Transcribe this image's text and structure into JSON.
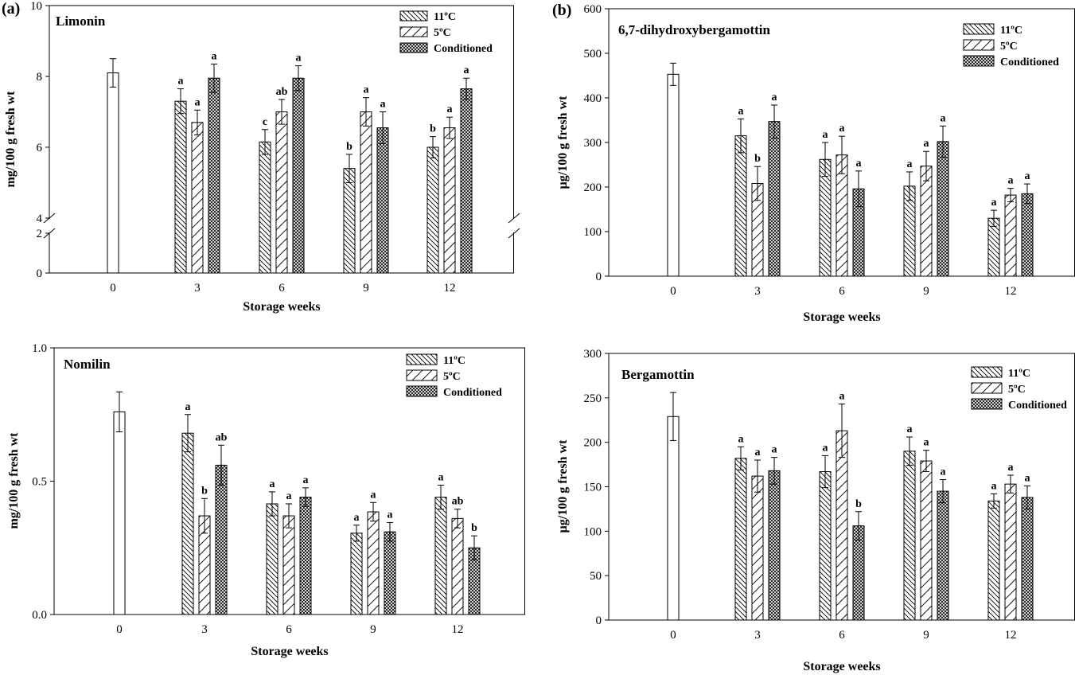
{
  "panel_labels": [
    "(a)",
    "(b)"
  ],
  "legend": {
    "series_names": [
      "11ºC",
      "5ºC",
      "Conditioned"
    ]
  },
  "chart_data": [
    {
      "type": "bar",
      "title": "Limonin",
      "xlabel": "Storage weeks",
      "ylabel": "mg/100 g fresh wt",
      "ylim": [
        0,
        10
      ],
      "axis_break": [
        2,
        4
      ],
      "yticks": [
        0,
        2,
        4,
        6,
        8,
        10
      ],
      "categories": [
        "0",
        "3",
        "6",
        "9",
        "12"
      ],
      "initial": {
        "value": 8.1,
        "error": 0.4
      },
      "series": [
        {
          "name": "11ºC",
          "values": [
            null,
            7.3,
            6.15,
            5.4,
            6.0
          ],
          "errors": [
            null,
            0.35,
            0.35,
            0.4,
            0.3
          ],
          "labels": [
            null,
            "a",
            "c",
            "b",
            "b"
          ]
        },
        {
          "name": "5ºC",
          "values": [
            null,
            6.7,
            7.0,
            7.0,
            6.55
          ],
          "errors": [
            null,
            0.35,
            0.35,
            0.4,
            0.3
          ],
          "labels": [
            null,
            "a",
            "ab",
            "a",
            "a"
          ]
        },
        {
          "name": "Conditioned",
          "values": [
            null,
            7.95,
            7.95,
            6.55,
            7.65
          ],
          "errors": [
            null,
            0.4,
            0.35,
            0.45,
            0.3
          ],
          "labels": [
            null,
            "a",
            "a",
            "a",
            "a"
          ]
        }
      ]
    },
    {
      "type": "bar",
      "title": "6,7-dihydroxybergamottin",
      "xlabel": "Storage weeks",
      "ylabel": "µg/100 g fresh wt",
      "ylim": [
        0,
        600
      ],
      "yticks": [
        0,
        100,
        200,
        300,
        400,
        500,
        600
      ],
      "categories": [
        "0",
        "3",
        "6",
        "9",
        "12"
      ],
      "initial": {
        "value": 453,
        "error": 25
      },
      "series": [
        {
          "name": "11ºC",
          "values": [
            null,
            315,
            262,
            202,
            130
          ],
          "errors": [
            null,
            38,
            38,
            32,
            18
          ],
          "labels": [
            null,
            "a",
            "a",
            "a",
            "a"
          ]
        },
        {
          "name": "5ºC",
          "values": [
            null,
            208,
            272,
            247,
            182
          ],
          "errors": [
            null,
            38,
            42,
            33,
            15
          ],
          "labels": [
            null,
            "b",
            "a",
            "a",
            "a"
          ]
        },
        {
          "name": "Conditioned",
          "values": [
            null,
            347,
            196,
            302,
            185
          ],
          "errors": [
            null,
            37,
            40,
            35,
            22
          ],
          "labels": [
            null,
            "a",
            "a",
            "a",
            "a"
          ]
        }
      ]
    },
    {
      "type": "bar",
      "title": "Nomilin",
      "xlabel": "Storage weeks",
      "ylabel": "mg/100 g fresh wt",
      "ylim": [
        0,
        1.0
      ],
      "yticks": [
        0.0,
        0.5,
        1.0
      ],
      "ytick_labels": [
        "0.0",
        "0.5",
        "1.0"
      ],
      "categories": [
        "0",
        "3",
        "6",
        "9",
        "12"
      ],
      "initial": {
        "value": 0.76,
        "error": 0.075
      },
      "series": [
        {
          "name": "11ºC",
          "values": [
            null,
            0.68,
            0.415,
            0.305,
            0.44
          ],
          "errors": [
            null,
            0.07,
            0.045,
            0.03,
            0.045
          ],
          "labels": [
            null,
            "a",
            "a",
            "a",
            "a"
          ]
        },
        {
          "name": "5ºC",
          "values": [
            null,
            0.37,
            0.37,
            0.385,
            0.36
          ],
          "errors": [
            null,
            0.065,
            0.045,
            0.035,
            0.035
          ],
          "labels": [
            null,
            "b",
            "a",
            "a",
            "ab"
          ]
        },
        {
          "name": "Conditioned",
          "values": [
            null,
            0.56,
            0.44,
            0.31,
            0.25
          ],
          "errors": [
            null,
            0.075,
            0.035,
            0.035,
            0.045
          ],
          "labels": [
            null,
            "ab",
            "a",
            "a",
            "b"
          ]
        }
      ]
    },
    {
      "type": "bar",
      "title": "Bergamottin",
      "xlabel": "Storage weeks",
      "ylabel": "µg/100 g fresh wt",
      "ylim": [
        0,
        300
      ],
      "yticks": [
        0,
        50,
        100,
        150,
        200,
        250,
        300
      ],
      "categories": [
        "0",
        "3",
        "6",
        "9",
        "12"
      ],
      "initial": {
        "value": 229,
        "error": 27
      },
      "series": [
        {
          "name": "11ºC",
          "values": [
            null,
            182,
            167,
            190,
            134
          ],
          "errors": [
            null,
            13,
            18,
            16,
            8
          ],
          "labels": [
            null,
            "a",
            "a",
            "a",
            "a"
          ]
        },
        {
          "name": "5ºC",
          "values": [
            null,
            162,
            213,
            179,
            153
          ],
          "errors": [
            null,
            18,
            30,
            12,
            10
          ],
          "labels": [
            null,
            "a",
            "a",
            "a",
            "a"
          ]
        },
        {
          "name": "Conditioned",
          "values": [
            null,
            168,
            106,
            145,
            138
          ],
          "errors": [
            null,
            15,
            16,
            13,
            13
          ],
          "labels": [
            null,
            "a",
            "b",
            "a",
            "a"
          ]
        }
      ]
    }
  ]
}
